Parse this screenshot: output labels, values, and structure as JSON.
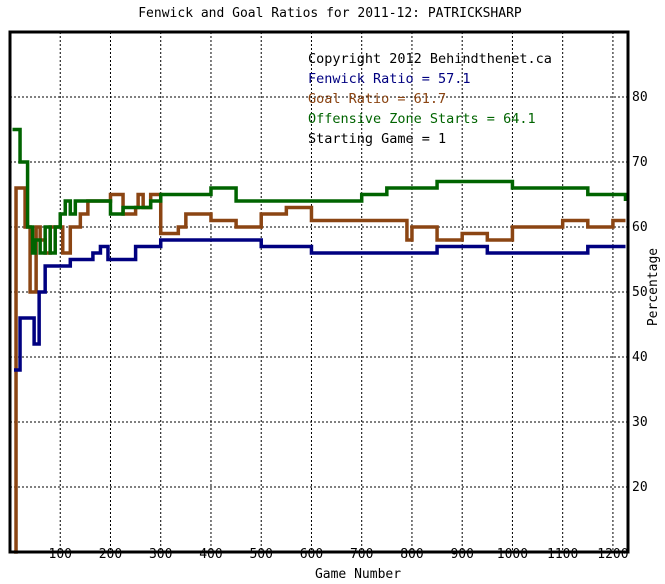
{
  "chart_data": {
    "type": "line",
    "title": "Fenwick and Goal Ratios for 2011-12: PATRICKSHARP",
    "xlabel": "Game Number",
    "ylabel": "Percentage",
    "xlim": [
      0,
      1230
    ],
    "ylim": [
      10,
      90
    ],
    "x_ticks": [
      "100",
      "200",
      "300",
      "400",
      "500",
      "600",
      "700",
      "800",
      "900",
      "1000",
      "1100",
      "1200"
    ],
    "y_ticks": [
      "20",
      "30",
      "40",
      "50",
      "60",
      "70",
      "80"
    ],
    "grid": true,
    "legend": {
      "placement": "top-right",
      "copyright": "Copyright 2012 Behindthenet.ca",
      "entries": [
        {
          "label": "Fenwick Ratio = 57.1",
          "color": "#000080"
        },
        {
          "label": "Goal Ratio = 61.7",
          "color": "#8b4513"
        },
        {
          "label": "Offensive Zone Starts = 64.1",
          "color": "#006400"
        },
        {
          "label": "Starting Game = 1",
          "color": "#000000"
        }
      ]
    },
    "series": [
      {
        "name": "Fenwick Ratio",
        "color": "#000080",
        "x": [
          8,
          20,
          40,
          48,
          58,
          70,
          100,
          120,
          135,
          150,
          165,
          180,
          195,
          215,
          250,
          280,
          300,
          340,
          370,
          400,
          450,
          500,
          550,
          600,
          650,
          700,
          750,
          800,
          850,
          900,
          950,
          1000,
          1050,
          1100,
          1150,
          1200,
          1225
        ],
        "y": [
          38,
          46,
          46,
          42,
          50,
          54,
          54,
          55,
          55,
          55,
          56,
          57,
          55,
          55,
          57,
          57,
          58,
          58,
          58,
          58,
          58,
          57,
          57,
          56,
          56,
          56,
          56,
          56,
          57,
          57,
          56,
          56,
          56,
          56,
          57,
          57,
          57
        ]
      },
      {
        "name": "Goal Ratio",
        "color": "#8b4513",
        "x": [
          8,
          12,
          18,
          30,
          40,
          48,
          52,
          60,
          70,
          80,
          95,
          105,
          120,
          140,
          155,
          180,
          200,
          225,
          250,
          255,
          265,
          280,
          300,
          335,
          350,
          375,
          400,
          450,
          500,
          550,
          560,
          600,
          650,
          700,
          750,
          790,
          800,
          850,
          900,
          950,
          1000,
          1050,
          1100,
          1150,
          1200,
          1225
        ],
        "y": [
          10,
          66,
          66,
          60,
          50,
          50,
          60,
          58,
          56,
          60,
          60,
          56,
          60,
          62,
          64,
          64,
          65,
          62,
          63,
          65,
          63,
          65,
          59,
          60,
          62,
          62,
          61,
          60,
          62,
          63,
          63,
          61,
          61,
          61,
          61,
          58,
          60,
          58,
          59,
          58,
          60,
          60,
          61,
          60,
          61,
          61
        ]
      },
      {
        "name": "Offensive Zone Starts",
        "color": "#006400",
        "x": [
          5,
          20,
          30,
          35,
          45,
          50,
          60,
          70,
          80,
          90,
          100,
          110,
          120,
          130,
          150,
          180,
          200,
          225,
          250,
          280,
          300,
          350,
          400,
          450,
          500,
          550,
          600,
          650,
          700,
          750,
          800,
          850,
          900,
          950,
          1000,
          1050,
          1100,
          1150,
          1200,
          1225
        ],
        "y": [
          75,
          70,
          70,
          60,
          56,
          58,
          56,
          60,
          56,
          60,
          62,
          64,
          62,
          64,
          64,
          64,
          62,
          63,
          63,
          64,
          65,
          65,
          66,
          64,
          64,
          64,
          64,
          64,
          65,
          66,
          66,
          67,
          67,
          67,
          66,
          66,
          66,
          65,
          65,
          64
        ]
      }
    ]
  }
}
